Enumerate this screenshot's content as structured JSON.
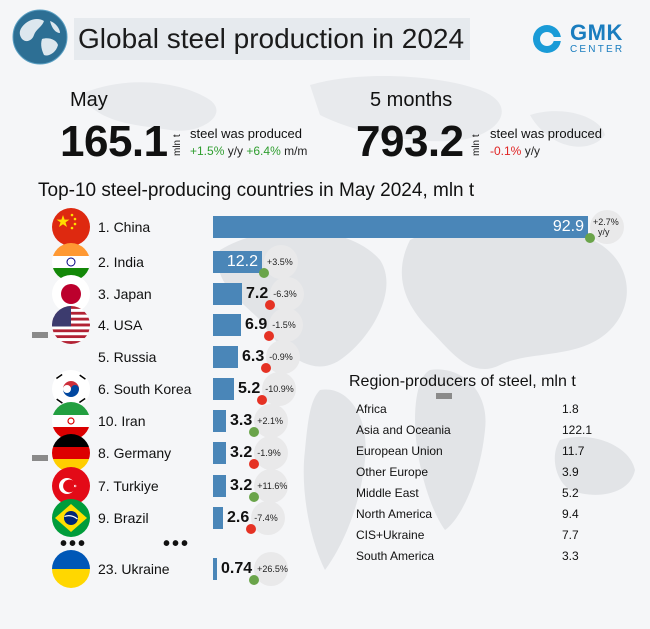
{
  "header": {
    "title": "Global steel production in 2024",
    "logo_text": "GMK",
    "logo_sub": "CENTER"
  },
  "summary": {
    "may": {
      "period": "May",
      "value": "165.1",
      "unit": "mln t",
      "produced": "steel was produced",
      "yoy": "+1.5%",
      "yoy_suffix": " y/y ",
      "mom": "+6.4%",
      "mom_suffix": " m/m"
    },
    "five_months": {
      "period": "5 months",
      "value": "793.2",
      "unit": "mln t",
      "produced": "steel was produced",
      "yoy": "-0.1%",
      "yoy_suffix": " y/y"
    }
  },
  "chart_data": {
    "type": "bar",
    "orientation": "horizontal",
    "title": "Top-10 steel-producing countries in May 2024, mln t",
    "categories": [
      "1. China",
      "2. India",
      "3. Japan",
      "4. USA",
      "5. Russia",
      "6. South Korea",
      "10. Iran",
      "8. Germany",
      "7. Turkiye",
      "9. Brazil",
      "23. Ukraine"
    ],
    "values": [
      92.9,
      12.2,
      7.2,
      6.9,
      6.3,
      5.2,
      3.3,
      3.2,
      3.2,
      2.6,
      0.74
    ],
    "value_labels": [
      "92.9",
      "12.2",
      "7.2",
      "6.9",
      "6.3",
      "5.2",
      "3.3",
      "3.2",
      "3.2",
      "2.6",
      "0.74"
    ],
    "changes": [
      "+2.7%",
      "+3.5%",
      "-6.3%",
      "-1.5%",
      "-0.9%",
      "-10.9%",
      "+2.1%",
      "-1.9%",
      "+11.6%",
      "-7.4%",
      "+26.5%"
    ],
    "change_suffix": "y/y",
    "flags": [
      "china-flag",
      "india-flag",
      "japan-flag",
      "usa-flag",
      "",
      "south-korea-flag",
      "iran-flag",
      "germany-flag",
      "turkiye-flag",
      "brazil-flag",
      "ukraine-flag"
    ],
    "bar_color": "#4a86b8",
    "positive_color": "#6aa44a",
    "negative_color": "#e53224"
  },
  "regions": {
    "title": "Region-producers of steel, mln t",
    "items": [
      {
        "name": "Africa",
        "value": "1.8"
      },
      {
        "name": "Asia and Oceania",
        "value": "122.1"
      },
      {
        "name": "European Union",
        "value": "11.7"
      },
      {
        "name": "Other Europe",
        "value": "3.9"
      },
      {
        "name": "Middle East",
        "value": "5.2"
      },
      {
        "name": "North America",
        "value": "9.4"
      },
      {
        "name": "CIS+Ukraine",
        "value": "7.7"
      },
      {
        "name": "South America",
        "value": "3.3"
      }
    ]
  }
}
